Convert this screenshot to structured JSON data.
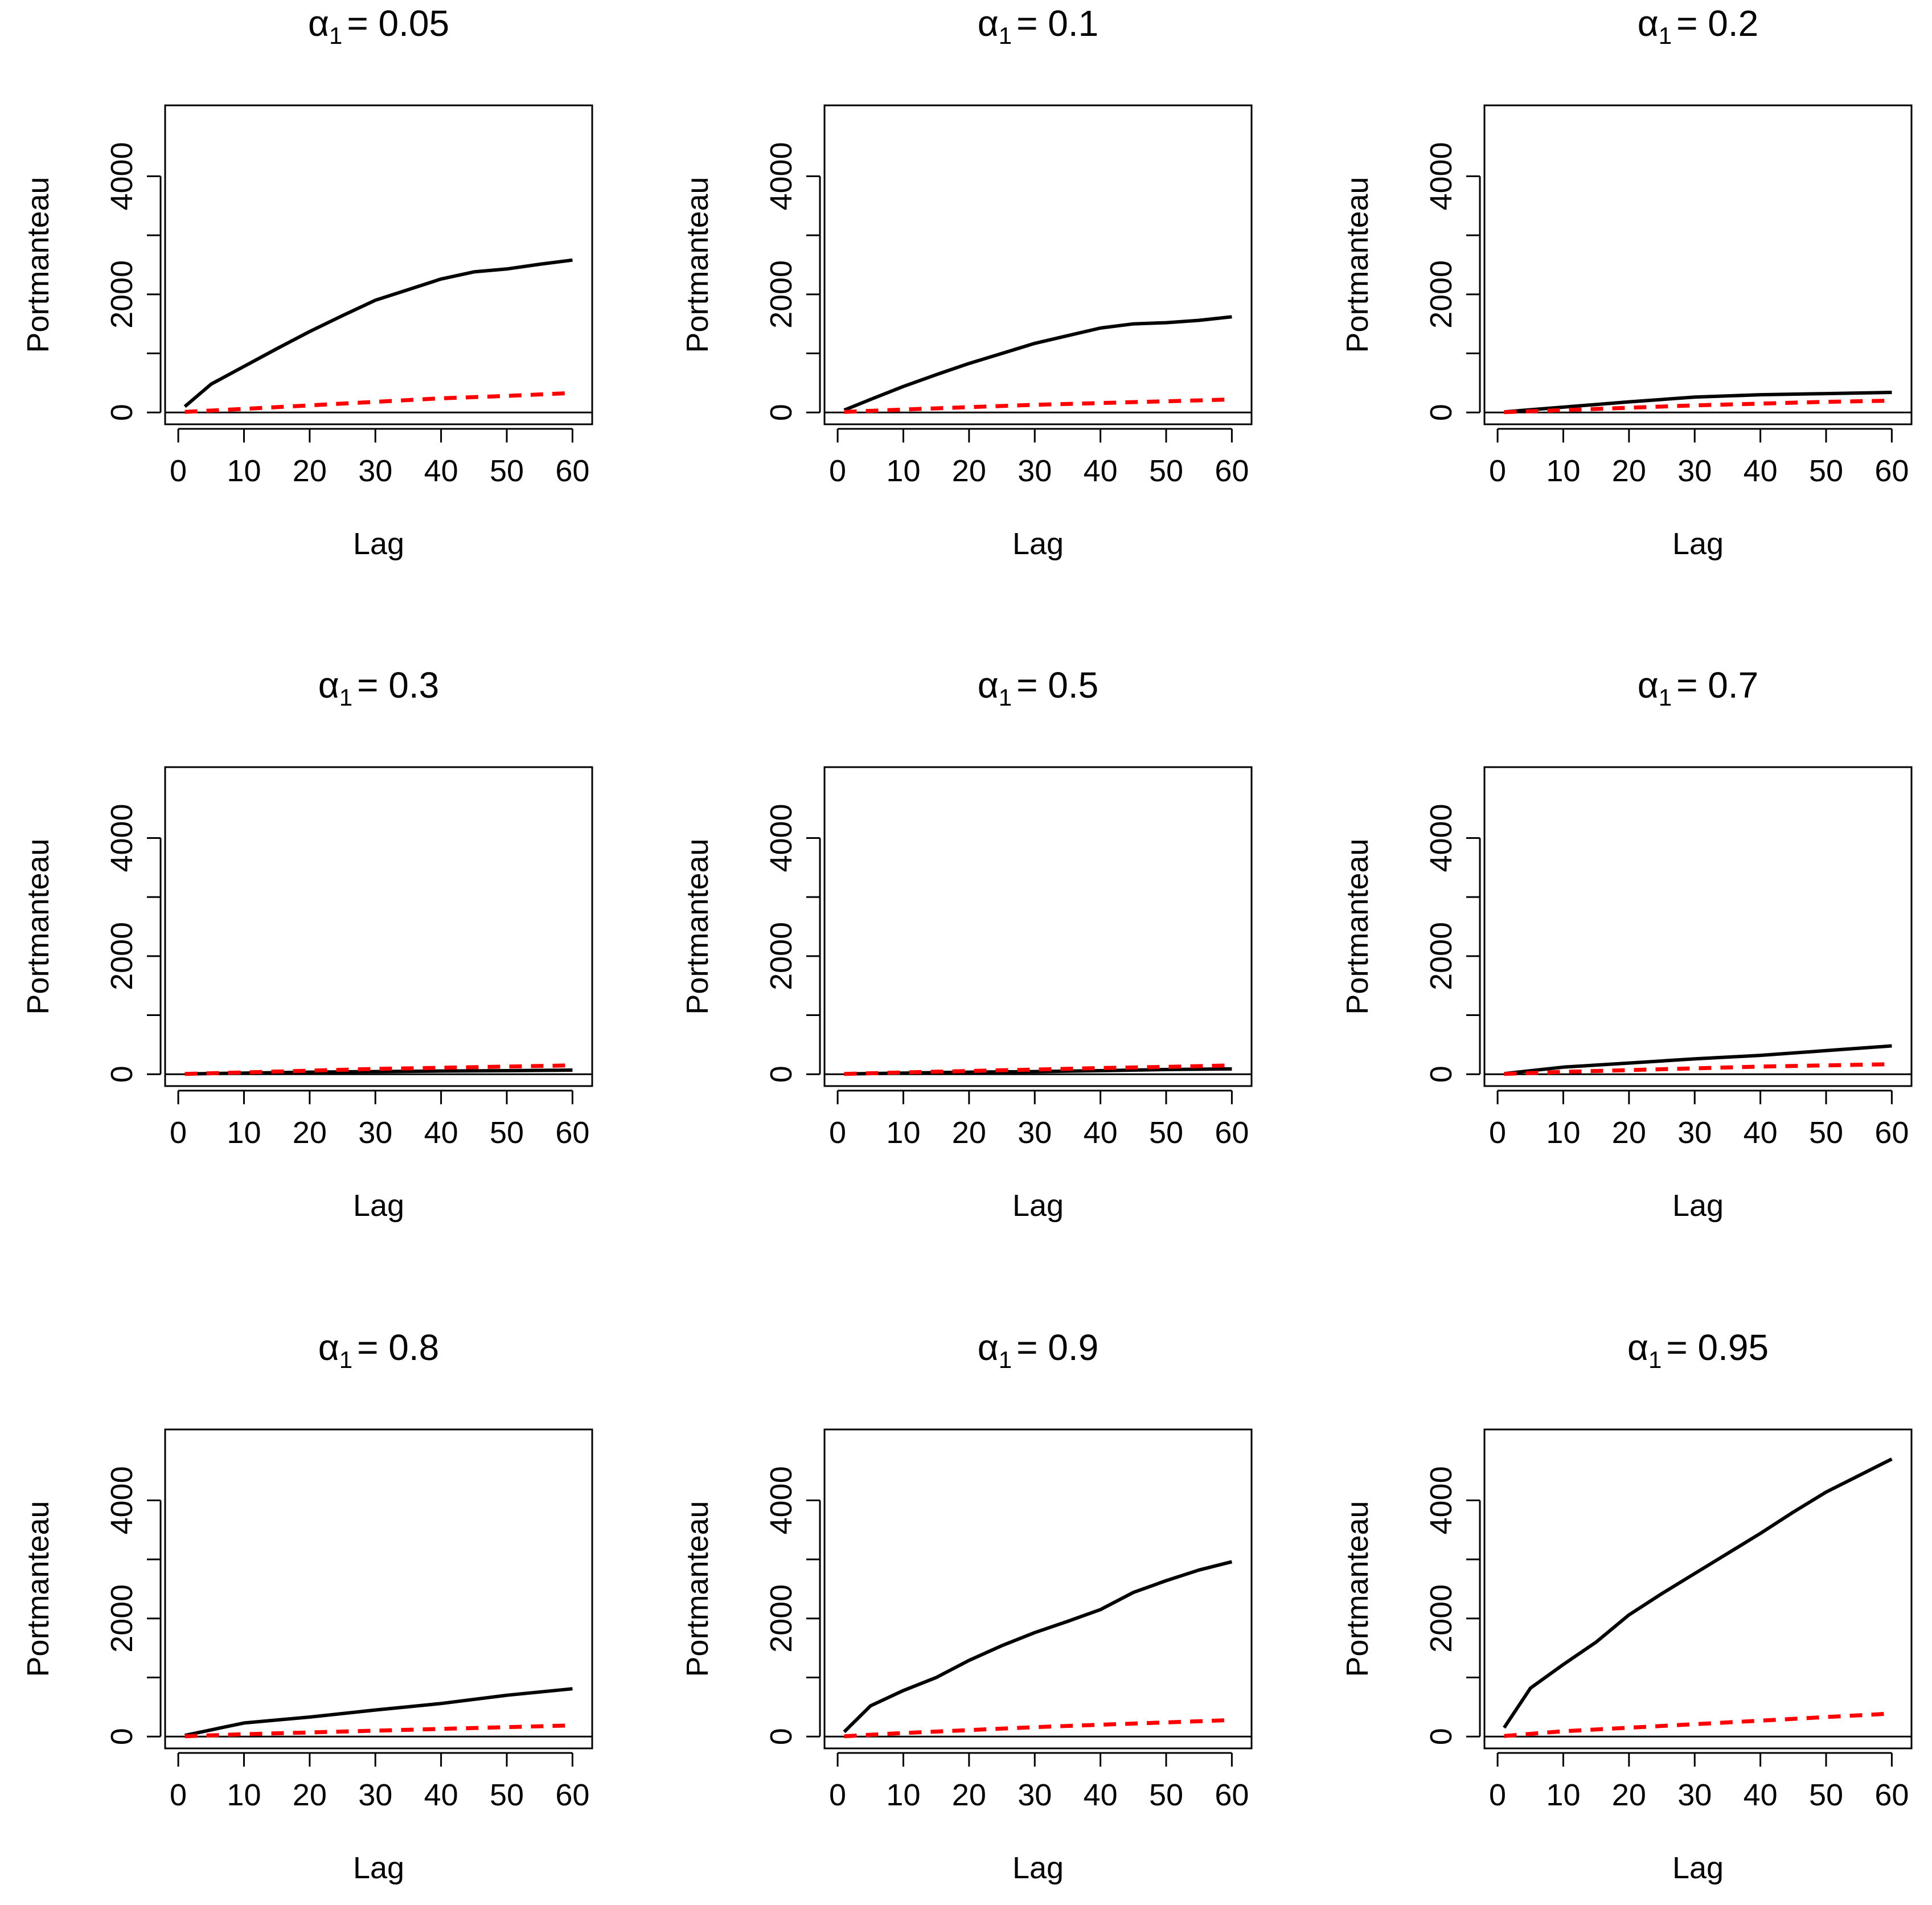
{
  "chart_data": [
    {
      "type": "line",
      "title": {
        "symbol": "α",
        "subscript": "1",
        "value": "= 0.05"
      },
      "xlabel": "Lag",
      "ylabel": "Portmanteau",
      "xlim": [
        0,
        60
      ],
      "ylim": [
        0,
        4800
      ],
      "xticks": [
        "0",
        "10",
        "20",
        "30",
        "40",
        "50",
        "60"
      ],
      "yticks": [
        "0",
        "2000",
        "4000"
      ],
      "series": [
        {
          "style": "solid",
          "color": "#000000",
          "x": [
            1,
            5,
            10,
            15,
            20,
            25,
            30,
            35,
            40,
            45,
            50,
            55,
            60
          ],
          "y": [
            100,
            480,
            780,
            1080,
            1370,
            1640,
            1900,
            2080,
            2260,
            2380,
            2430,
            2510,
            2580
          ]
        },
        {
          "style": "dashed",
          "color": "#ff0000",
          "x": [
            1,
            10,
            20,
            30,
            40,
            50,
            60
          ],
          "y": [
            10,
            60,
            120,
            180,
            240,
            280,
            330
          ]
        }
      ]
    },
    {
      "type": "line",
      "title": {
        "symbol": "α",
        "subscript": "1",
        "value": "= 0.1"
      },
      "xlabel": "Lag",
      "ylabel": "Portmanteau",
      "xlim": [
        0,
        60
      ],
      "ylim": [
        0,
        4800
      ],
      "xticks": [
        "0",
        "10",
        "20",
        "30",
        "40",
        "50",
        "60"
      ],
      "yticks": [
        "0",
        "2000",
        "4000"
      ],
      "series": [
        {
          "style": "solid",
          "color": "#000000",
          "x": [
            1,
            5,
            10,
            15,
            20,
            25,
            30,
            35,
            40,
            45,
            50,
            55,
            60
          ],
          "y": [
            40,
            220,
            440,
            640,
            830,
            1000,
            1170,
            1300,
            1430,
            1500,
            1520,
            1560,
            1620
          ]
        },
        {
          "style": "dashed",
          "color": "#ff0000",
          "x": [
            1,
            10,
            20,
            30,
            40,
            50,
            60
          ],
          "y": [
            10,
            50,
            90,
            130,
            160,
            190,
            220
          ]
        }
      ]
    },
    {
      "type": "line",
      "title": {
        "symbol": "α",
        "subscript": "1",
        "value": "= 0.2"
      },
      "xlabel": "Lag",
      "ylabel": "Portmanteau",
      "xlim": [
        0,
        60
      ],
      "ylim": [
        0,
        4800
      ],
      "xticks": [
        "0",
        "10",
        "20",
        "30",
        "40",
        "50",
        "60"
      ],
      "yticks": [
        "0",
        "2000",
        "4000"
      ],
      "series": [
        {
          "style": "solid",
          "color": "#000000",
          "x": [
            1,
            10,
            20,
            30,
            40,
            50,
            60
          ],
          "y": [
            10,
            90,
            180,
            260,
            300,
            320,
            340
          ]
        },
        {
          "style": "dashed",
          "color": "#ff0000",
          "x": [
            1,
            10,
            20,
            30,
            40,
            50,
            60
          ],
          "y": [
            5,
            40,
            80,
            120,
            150,
            180,
            200
          ]
        }
      ]
    },
    {
      "type": "line",
      "title": {
        "symbol": "α",
        "subscript": "1",
        "value": "= 0.3"
      },
      "xlabel": "Lag",
      "ylabel": "Portmanteau",
      "xlim": [
        0,
        60
      ],
      "ylim": [
        0,
        4800
      ],
      "xticks": [
        "0",
        "10",
        "20",
        "30",
        "40",
        "50",
        "60"
      ],
      "yticks": [
        "0",
        "2000",
        "4000"
      ],
      "series": [
        {
          "style": "solid",
          "color": "#000000",
          "x": [
            1,
            10,
            20,
            30,
            40,
            50,
            60
          ],
          "y": [
            5,
            20,
            35,
            45,
            55,
            60,
            70
          ]
        },
        {
          "style": "dashed",
          "color": "#ff0000",
          "x": [
            1,
            10,
            20,
            30,
            40,
            50,
            60
          ],
          "y": [
            5,
            30,
            60,
            90,
            110,
            130,
            150
          ]
        }
      ]
    },
    {
      "type": "line",
      "title": {
        "symbol": "α",
        "subscript": "1",
        "value": "= 0.5"
      },
      "xlabel": "Lag",
      "ylabel": "Portmanteau",
      "xlim": [
        0,
        60
      ],
      "ylim": [
        0,
        4800
      ],
      "xticks": [
        "0",
        "10",
        "20",
        "30",
        "40",
        "50",
        "60"
      ],
      "yticks": [
        "0",
        "2000",
        "4000"
      ],
      "series": [
        {
          "style": "solid",
          "color": "#000000",
          "x": [
            1,
            10,
            20,
            30,
            40,
            50,
            60
          ],
          "y": [
            5,
            20,
            35,
            45,
            60,
            80,
            90
          ]
        },
        {
          "style": "dashed",
          "color": "#ff0000",
          "x": [
            1,
            10,
            20,
            30,
            40,
            50,
            60
          ],
          "y": [
            5,
            30,
            55,
            80,
            105,
            125,
            150
          ]
        }
      ]
    },
    {
      "type": "line",
      "title": {
        "symbol": "α",
        "subscript": "1",
        "value": "= 0.7"
      },
      "xlabel": "Lag",
      "ylabel": "Portmanteau",
      "xlim": [
        0,
        60
      ],
      "ylim": [
        0,
        4800
      ],
      "xticks": [
        "0",
        "10",
        "20",
        "30",
        "40",
        "50",
        "60"
      ],
      "yticks": [
        "0",
        "2000",
        "4000"
      ],
      "series": [
        {
          "style": "solid",
          "color": "#000000",
          "x": [
            1,
            10,
            20,
            30,
            40,
            50,
            60
          ],
          "y": [
            10,
            120,
            190,
            260,
            320,
            400,
            480
          ]
        },
        {
          "style": "dashed",
          "color": "#ff0000",
          "x": [
            1,
            10,
            20,
            30,
            40,
            50,
            60
          ],
          "y": [
            5,
            40,
            70,
            100,
            130,
            150,
            170
          ]
        }
      ]
    },
    {
      "type": "line",
      "title": {
        "symbol": "α",
        "subscript": "1",
        "value": "= 0.8"
      },
      "xlabel": "Lag",
      "ylabel": "Portmanteau",
      "xlim": [
        0,
        60
      ],
      "ylim": [
        0,
        4800
      ],
      "xticks": [
        "0",
        "10",
        "20",
        "30",
        "40",
        "50",
        "60"
      ],
      "yticks": [
        "0",
        "2000",
        "4000"
      ],
      "series": [
        {
          "style": "solid",
          "color": "#000000",
          "x": [
            1,
            10,
            20,
            30,
            40,
            50,
            60
          ],
          "y": [
            20,
            230,
            330,
            450,
            560,
            700,
            810
          ]
        },
        {
          "style": "dashed",
          "color": "#ff0000",
          "x": [
            1,
            10,
            20,
            30,
            40,
            50,
            60
          ],
          "y": [
            5,
            40,
            70,
            100,
            130,
            160,
            190
          ]
        }
      ]
    },
    {
      "type": "line",
      "title": {
        "symbol": "α",
        "subscript": "1",
        "value": "= 0.9"
      },
      "xlabel": "Lag",
      "ylabel": "Portmanteau",
      "xlim": [
        0,
        60
      ],
      "ylim": [
        0,
        4800
      ],
      "xticks": [
        "0",
        "10",
        "20",
        "30",
        "40",
        "50",
        "60"
      ],
      "yticks": [
        "0",
        "2000",
        "4000"
      ],
      "series": [
        {
          "style": "solid",
          "color": "#000000",
          "x": [
            1,
            5,
            10,
            15,
            20,
            25,
            30,
            35,
            40,
            45,
            50,
            55,
            60
          ],
          "y": [
            80,
            520,
            780,
            1000,
            1290,
            1540,
            1760,
            1950,
            2150,
            2440,
            2640,
            2820,
            2960
          ]
        },
        {
          "style": "dashed",
          "color": "#ff0000",
          "x": [
            1,
            10,
            20,
            30,
            40,
            50,
            60
          ],
          "y": [
            5,
            60,
            110,
            160,
            200,
            240,
            280
          ]
        }
      ]
    },
    {
      "type": "line",
      "title": {
        "symbol": "α",
        "subscript": "1",
        "value": "= 0.95"
      },
      "xlabel": "Lag",
      "ylabel": "Portmanteau",
      "xlim": [
        0,
        60
      ],
      "ylim": [
        0,
        4800
      ],
      "xticks": [
        "0",
        "10",
        "20",
        "30",
        "40",
        "50",
        "60"
      ],
      "yticks": [
        "0",
        "2000",
        "4000"
      ],
      "series": [
        {
          "style": "solid",
          "color": "#000000",
          "x": [
            1,
            5,
            10,
            15,
            20,
            25,
            30,
            35,
            40,
            45,
            50,
            55,
            60
          ],
          "y": [
            150,
            820,
            1220,
            1600,
            2060,
            2420,
            2760,
            3100,
            3440,
            3800,
            4140,
            4420,
            4700
          ]
        },
        {
          "style": "dashed",
          "color": "#ff0000",
          "x": [
            1,
            10,
            20,
            30,
            40,
            50,
            60
          ],
          "y": [
            10,
            90,
            150,
            210,
            270,
            330,
            390
          ]
        }
      ]
    }
  ]
}
